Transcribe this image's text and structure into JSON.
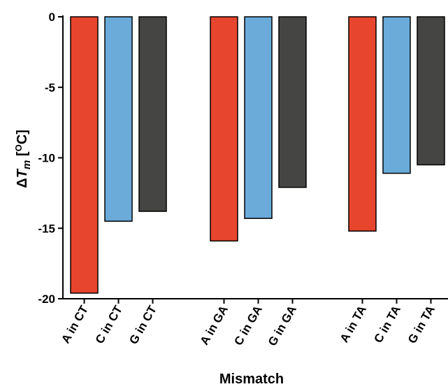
{
  "chart_data": {
    "type": "bar",
    "title": "",
    "xlabel": "Mismatch",
    "ylabel_delta": "Δ",
    "ylabel_symbol": "T",
    "ylabel_subscript": "m",
    "ylabel_unit_open": " [",
    "ylabel_unit_sup": "O",
    "ylabel_unit_close": "C]",
    "ylim": [
      -20,
      0
    ],
    "yticks": [
      "0",
      "-5",
      "-10",
      "-15",
      "-20"
    ],
    "ytick_values": [
      0,
      -5,
      -10,
      -15,
      -20
    ],
    "categories": [
      "A in CT",
      "C in CT",
      "G in CT",
      "A in GA",
      "C in GA",
      "G in GA",
      "A in TA",
      "C in TA",
      "G in TA"
    ],
    "values": [
      -19.6,
      -14.5,
      -13.8,
      -15.9,
      -14.3,
      -12.1,
      -15.2,
      -11.1,
      -10.5
    ],
    "groups": [
      3,
      3,
      3
    ],
    "bar_colors": [
      "#e8452e",
      "#6aabda",
      "#454543",
      "#e8452e",
      "#6aabda",
      "#454543",
      "#e8452e",
      "#6aabda",
      "#454543"
    ],
    "grid": false,
    "legend": "none"
  }
}
